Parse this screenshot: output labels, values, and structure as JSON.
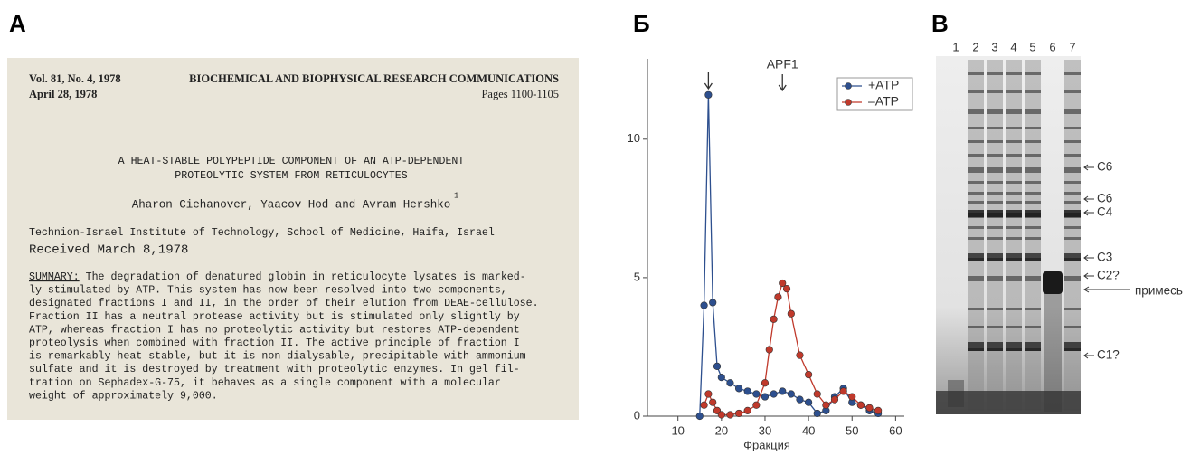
{
  "panels": {
    "a": "А",
    "b": "Б",
    "c": "В"
  },
  "document": {
    "header_left": [
      "Vol. 81, No. 4, 1978",
      "April 28, 1978"
    ],
    "journal": "BIOCHEMICAL AND BIOPHYSICAL RESEARCH COMMUNICATIONS",
    "pages": "Pages  1100-1105",
    "title": [
      "A HEAT-STABLE POLYPEPTIDE COMPONENT OF AN ATP-DEPENDENT",
      "PROTEOLYTIC SYSTEM FROM RETICULOCYTES"
    ],
    "authors": "Aharon Ciehanover, Yaacov Hod and Avram Hershko",
    "footnote": "1",
    "affiliation": "Technion-Israel Institute of Technology, School of Medicine, Haifa, Israel",
    "received": "Received March 8,1978",
    "summary_label": "SUMMARY:",
    "summary": [
      " The degradation of denatured globin in reticulocyte lysates is marked-",
      "ly stimulated by ATP.  This system has now been resolved into two components,",
      "designated fractions I and II, in the order of their elution from DEAE-cellulose.",
      "Fraction II has a neutral protease activity but is stimulated only slightly by",
      "ATP, whereas fraction I has no proteolytic activity but restores ATP-dependent",
      "proteolysis when combined with fraction II.  The active principle of fraction I",
      "is remarkably heat-stable, but it is non-dialysable, precipitable with ammonium",
      "sulfate and it is destroyed by treatment with proteolytic enzymes.  In gel fil-",
      "tration on Sephadex-G-75, it behaves as a single component with a molecular",
      "weight of approximately 9,000."
    ]
  },
  "chart_data": {
    "type": "line",
    "xlabel": "Фракция",
    "xlim": [
      3,
      62
    ],
    "ylim": [
      0,
      12.9
    ],
    "xticks": [
      10,
      20,
      30,
      40,
      50,
      60
    ],
    "yticks": [
      0,
      5,
      10
    ],
    "legend": "top-right",
    "annotations": [
      {
        "x": 17
      },
      {
        "x": 34,
        "text": "APF1"
      }
    ],
    "series": [
      {
        "name": "+ATP",
        "color": "#2d4f8e",
        "x": [
          15,
          16,
          17,
          18,
          19,
          20,
          22,
          24,
          26,
          28,
          30,
          32,
          34,
          36,
          38,
          40,
          42,
          44,
          46,
          48,
          50,
          52,
          54,
          56
        ],
        "values": [
          0,
          4,
          11.6,
          4.1,
          1.8,
          1.4,
          1.2,
          1.0,
          0.9,
          0.8,
          0.7,
          0.8,
          0.9,
          0.8,
          0.6,
          0.5,
          0.1,
          0.2,
          0.7,
          1.0,
          0.5,
          0.4,
          0.2,
          0.1
        ]
      },
      {
        "name": "–ATP",
        "color": "#c0392b",
        "x": [
          16,
          17,
          18,
          19,
          20,
          22,
          24,
          26,
          28,
          30,
          31,
          32,
          33,
          34,
          35,
          36,
          38,
          40,
          42,
          44,
          46,
          48,
          50,
          52,
          54,
          56
        ],
        "values": [
          0.4,
          0.8,
          0.5,
          0.2,
          0.05,
          0.05,
          0.1,
          0.2,
          0.4,
          1.2,
          2.4,
          3.5,
          4.3,
          4.8,
          4.6,
          3.7,
          2.2,
          1.5,
          0.8,
          0.4,
          0.6,
          0.9,
          0.7,
          0.4,
          0.3,
          0.2
        ]
      }
    ]
  },
  "gel": {
    "lanes": [
      "1",
      "2",
      "3",
      "4",
      "5",
      "6",
      "7"
    ],
    "markers": [
      "C6",
      "C6",
      "C4",
      "C3",
      "C2?",
      "C1?"
    ],
    "impurity": "примесь"
  }
}
